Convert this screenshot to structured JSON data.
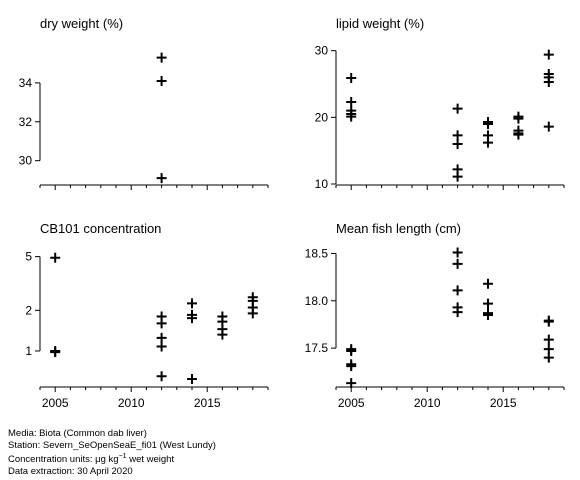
{
  "footer": {
    "media": "Media: Biota (Common dab liver)",
    "station": "Station: Severn_SeOpenSeaE_fi01 (West Lundy)",
    "units_prefix": "Concentration units: ",
    "units_mu": "μg kg",
    "units_exp": "−1",
    "units_suffix": " wet weight",
    "extraction": "Data extraction: 30 April 2020"
  },
  "chart_data": [
    {
      "type": "scatter",
      "title": "dry weight (%)",
      "xlim": [
        2004,
        2019
      ],
      "xticks": [
        2005,
        2010,
        2015
      ],
      "xtick_labels": [],
      "ylim": [
        28.8,
        36.0
      ],
      "yscale": "linear",
      "yticks": [
        30,
        32,
        34
      ],
      "ytick_labels": [
        "30",
        "32",
        "34"
      ],
      "points": [
        {
          "x": 2012,
          "y": 35.3
        },
        {
          "x": 2012,
          "y": 34.1
        },
        {
          "x": 2012,
          "y": 29.1
        }
      ]
    },
    {
      "type": "scatter",
      "title": "lipid weight (%)",
      "xlim": [
        2004,
        2019
      ],
      "xticks": [
        2005,
        2010,
        2015
      ],
      "xtick_labels": [],
      "ylim": [
        10,
        31
      ],
      "yscale": "linear",
      "yticks": [
        10,
        20,
        30
      ],
      "ytick_labels": [
        "10",
        "20",
        "30"
      ],
      "points": [
        {
          "x": 2005,
          "y": 25.9
        },
        {
          "x": 2005,
          "y": 22.3
        },
        {
          "x": 2005,
          "y": 21.0
        },
        {
          "x": 2005,
          "y": 20.5
        },
        {
          "x": 2005,
          "y": 20.1
        },
        {
          "x": 2012,
          "y": 21.3
        },
        {
          "x": 2012,
          "y": 17.3
        },
        {
          "x": 2012,
          "y": 16.0
        },
        {
          "x": 2012,
          "y": 12.2
        },
        {
          "x": 2012,
          "y": 11.1
        },
        {
          "x": 2014,
          "y": 19.3
        },
        {
          "x": 2014,
          "y": 19.0
        },
        {
          "x": 2014,
          "y": 17.3
        },
        {
          "x": 2014,
          "y": 16.2
        },
        {
          "x": 2016,
          "y": 20.1
        },
        {
          "x": 2016,
          "y": 19.8
        },
        {
          "x": 2016,
          "y": 18.0
        },
        {
          "x": 2016,
          "y": 17.6
        },
        {
          "x": 2016,
          "y": 17.4
        },
        {
          "x": 2018,
          "y": 29.4
        },
        {
          "x": 2018,
          "y": 26.5
        },
        {
          "x": 2018,
          "y": 26.0
        },
        {
          "x": 2018,
          "y": 25.3
        },
        {
          "x": 2018,
          "y": 18.6
        }
      ]
    },
    {
      "type": "scatter",
      "title": "CB101 concentration",
      "xlim": [
        2004,
        2019
      ],
      "xticks": [
        2005,
        2010,
        2015
      ],
      "xtick_labels": [
        "2005",
        "2010",
        "2015"
      ],
      "ylim": [
        0.55,
        6.2
      ],
      "yscale": "log",
      "yticks": [
        1,
        2,
        5
      ],
      "ytick_labels": [
        "1",
        "2",
        "5"
      ],
      "points": [
        {
          "x": 2005,
          "y": 4.9
        },
        {
          "x": 2005,
          "y": 1.0
        },
        {
          "x": 2005,
          "y": 0.98
        },
        {
          "x": 2012,
          "y": 1.8
        },
        {
          "x": 2012,
          "y": 1.6
        },
        {
          "x": 2012,
          "y": 1.25
        },
        {
          "x": 2012,
          "y": 1.08
        },
        {
          "x": 2012,
          "y": 0.65
        },
        {
          "x": 2014,
          "y": 2.25
        },
        {
          "x": 2014,
          "y": 1.85
        },
        {
          "x": 2014,
          "y": 1.75
        },
        {
          "x": 2014,
          "y": 0.62
        },
        {
          "x": 2016,
          "y": 1.8
        },
        {
          "x": 2016,
          "y": 1.65
        },
        {
          "x": 2016,
          "y": 1.45
        },
        {
          "x": 2016,
          "y": 1.32
        },
        {
          "x": 2018,
          "y": 2.5
        },
        {
          "x": 2018,
          "y": 2.35
        },
        {
          "x": 2018,
          "y": 2.1
        },
        {
          "x": 2018,
          "y": 1.9
        }
      ]
    },
    {
      "type": "scatter",
      "title": "Mean fish length (cm)",
      "xlim": [
        2004,
        2019
      ],
      "xticks": [
        2005,
        2010,
        2015
      ],
      "xtick_labels": [
        "2005",
        "2010",
        "2015"
      ],
      "ylim": [
        17.1,
        18.6
      ],
      "yscale": "linear",
      "yticks": [
        17.5,
        18.0,
        18.5
      ],
      "ytick_labels": [
        "17.5",
        "18.0",
        "18.5"
      ],
      "points": [
        {
          "x": 2005,
          "y": 17.49
        },
        {
          "x": 2005,
          "y": 17.47
        },
        {
          "x": 2005,
          "y": 17.33
        },
        {
          "x": 2005,
          "y": 17.31
        },
        {
          "x": 2005,
          "y": 17.13
        },
        {
          "x": 2012,
          "y": 18.51
        },
        {
          "x": 2012,
          "y": 18.39
        },
        {
          "x": 2012,
          "y": 18.11
        },
        {
          "x": 2012,
          "y": 17.93
        },
        {
          "x": 2012,
          "y": 17.88
        },
        {
          "x": 2014,
          "y": 18.18
        },
        {
          "x": 2014,
          "y": 17.97
        },
        {
          "x": 2014,
          "y": 17.87
        },
        {
          "x": 2014,
          "y": 17.85
        },
        {
          "x": 2018,
          "y": 17.79
        },
        {
          "x": 2018,
          "y": 17.78
        },
        {
          "x": 2018,
          "y": 17.59
        },
        {
          "x": 2018,
          "y": 17.49
        },
        {
          "x": 2018,
          "y": 17.4
        }
      ]
    }
  ]
}
